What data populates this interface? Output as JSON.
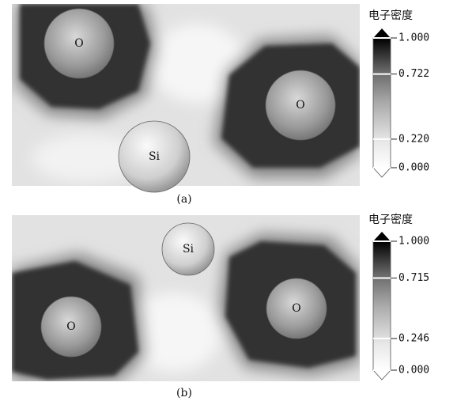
{
  "panels": [
    {
      "label": "(a)",
      "colorbar": {
        "title": "电子密度",
        "ticks": [
          {
            "value": 1,
            "label": "1.000"
          },
          {
            "value": 0.722,
            "label": "0.722"
          },
          {
            "value": 0.22,
            "label": "0.220"
          },
          {
            "value": 0,
            "label": "0.000"
          }
        ]
      },
      "atoms": [
        "O",
        "O",
        "Si"
      ]
    },
    {
      "label": "(b)",
      "colorbar": {
        "title": "电子密度",
        "ticks": [
          {
            "value": 1,
            "label": "1.000"
          },
          {
            "value": 0.715,
            "label": "0.715"
          },
          {
            "value": 0.246,
            "label": "0.246"
          },
          {
            "value": 0,
            "label": "0.000"
          }
        ]
      },
      "atoms": [
        "Si",
        "O",
        "O"
      ]
    }
  ]
}
